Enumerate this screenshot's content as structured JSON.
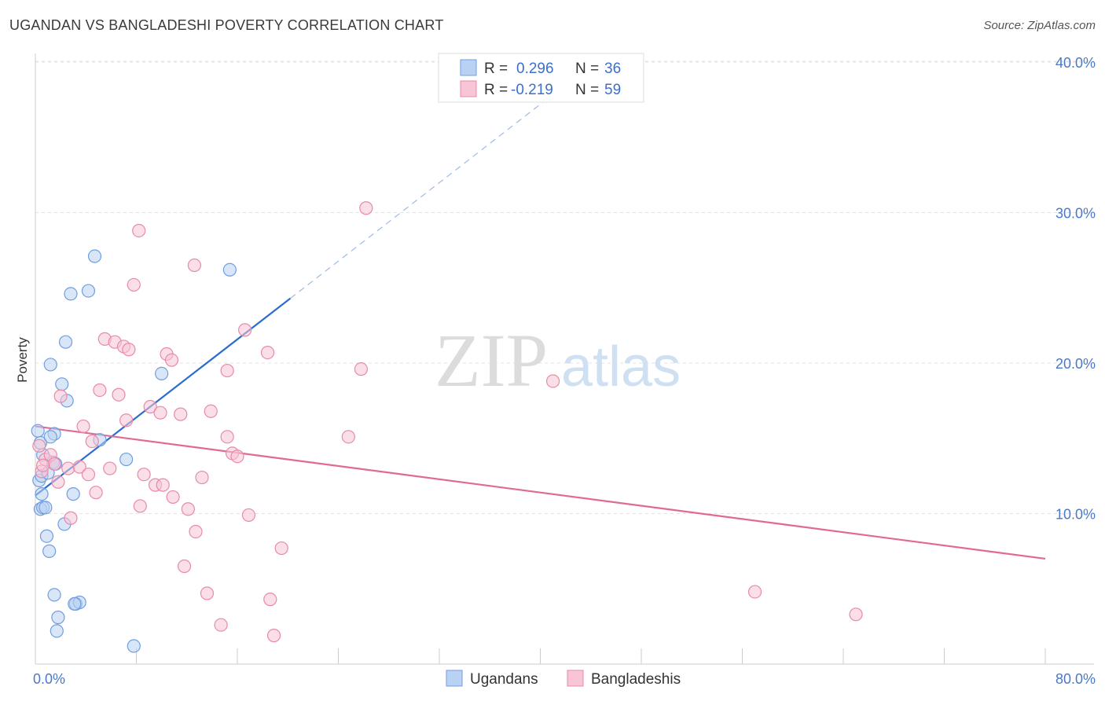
{
  "title": "UGANDAN VS BANGLADESHI POVERTY CORRELATION CHART",
  "source": "Source: ZipAtlas.com",
  "watermark": {
    "zip": "ZIP",
    "atlas": "atlas"
  },
  "colors": {
    "blue": "#6f9ee0",
    "blue_fill": "#b9d1f2",
    "blue_line": "#2a6ccf",
    "pink": "#e88aa8",
    "pink_fill": "#f7c5d6",
    "pink_line": "#e06a93",
    "tick": "#4a78c8",
    "grid": "#e3e3e3"
  },
  "chart_data": {
    "type": "scatter",
    "title": "UGANDAN VS BANGLADESHI POVERTY CORRELATION CHART",
    "xlabel": "",
    "ylabel": "Poverty",
    "xlim": [
      0,
      80
    ],
    "ylim": [
      0,
      41
    ],
    "x_tick_labels": [
      "0.0%",
      "80.0%"
    ],
    "y_ticks": [
      10,
      20,
      30,
      40
    ],
    "y_tick_labels": [
      "10.0%",
      "20.0%",
      "30.0%",
      "40.0%"
    ],
    "legend": {
      "entries": [
        {
          "r_label": "R =",
          "r_value": "0.296",
          "n_label": "N =",
          "n_value": "36"
        },
        {
          "r_label": "R =",
          "r_value": "-0.219",
          "n_label": "N =",
          "n_value": "59"
        }
      ]
    },
    "series": [
      {
        "name": "Ugandans",
        "color": "blue",
        "trend": {
          "x0": 0,
          "y0": 11.2,
          "x1": 20.2,
          "y1": 24.3,
          "dash_x1": 42,
          "dash_y1": 38.5
        },
        "points": [
          [
            0.2,
            15.5
          ],
          [
            0.4,
            14.7
          ],
          [
            0.3,
            12.2
          ],
          [
            0.5,
            11.3
          ],
          [
            0.4,
            10.3
          ],
          [
            0.6,
            10.4
          ],
          [
            0.5,
            12.5
          ],
          [
            1.0,
            12.7
          ],
          [
            1.4,
            13.4
          ],
          [
            1.5,
            15.3
          ],
          [
            1.2,
            15.1
          ],
          [
            1.6,
            13.3
          ],
          [
            0.9,
            8.5
          ],
          [
            1.1,
            7.5
          ],
          [
            1.2,
            19.9
          ],
          [
            2.1,
            18.6
          ],
          [
            2.5,
            17.5
          ],
          [
            2.4,
            21.4
          ],
          [
            2.8,
            24.6
          ],
          [
            4.2,
            24.8
          ],
          [
            4.7,
            27.1
          ],
          [
            2.3,
            9.3
          ],
          [
            3.0,
            11.3
          ],
          [
            1.5,
            4.6
          ],
          [
            1.8,
            3.1
          ],
          [
            3.2,
            4.0
          ],
          [
            3.5,
            4.1
          ],
          [
            1.7,
            2.2
          ],
          [
            5.1,
            14.9
          ],
          [
            7.2,
            13.6
          ],
          [
            10.0,
            19.3
          ],
          [
            15.4,
            26.2
          ],
          [
            7.8,
            1.2
          ],
          [
            3.1,
            4.0
          ],
          [
            0.8,
            10.4
          ],
          [
            0.6,
            13.9
          ]
        ]
      },
      {
        "name": "Bangladeshis",
        "color": "pink",
        "trend": {
          "x0": 0,
          "y0": 15.8,
          "x1": 80,
          "y1": 7.0
        },
        "points": [
          [
            0.3,
            14.5
          ],
          [
            0.5,
            12.8
          ],
          [
            0.8,
            13.6
          ],
          [
            1.2,
            13.9
          ],
          [
            1.5,
            13.3
          ],
          [
            1.8,
            12.1
          ],
          [
            2.0,
            17.8
          ],
          [
            2.6,
            13.0
          ],
          [
            2.8,
            9.7
          ],
          [
            3.5,
            13.1
          ],
          [
            3.8,
            15.8
          ],
          [
            4.2,
            12.6
          ],
          [
            4.5,
            14.8
          ],
          [
            4.8,
            11.4
          ],
          [
            5.1,
            18.2
          ],
          [
            5.5,
            21.6
          ],
          [
            5.9,
            13.0
          ],
          [
            6.3,
            21.4
          ],
          [
            6.6,
            17.9
          ],
          [
            7.0,
            21.1
          ],
          [
            7.2,
            16.2
          ],
          [
            7.4,
            20.9
          ],
          [
            7.8,
            25.2
          ],
          [
            8.3,
            10.5
          ],
          [
            8.2,
            28.8
          ],
          [
            8.6,
            12.6
          ],
          [
            9.1,
            17.1
          ],
          [
            9.5,
            11.9
          ],
          [
            9.9,
            16.7
          ],
          [
            10.1,
            11.9
          ],
          [
            10.4,
            20.6
          ],
          [
            10.8,
            20.2
          ],
          [
            10.9,
            11.1
          ],
          [
            11.5,
            16.6
          ],
          [
            11.8,
            6.5
          ],
          [
            12.1,
            10.3
          ],
          [
            12.6,
            26.5
          ],
          [
            12.7,
            8.8
          ],
          [
            13.2,
            12.4
          ],
          [
            13.6,
            4.7
          ],
          [
            13.9,
            16.8
          ],
          [
            14.7,
            2.6
          ],
          [
            15.2,
            19.5
          ],
          [
            15.2,
            15.1
          ],
          [
            15.6,
            14.0
          ],
          [
            16.0,
            13.8
          ],
          [
            16.6,
            22.2
          ],
          [
            16.9,
            9.9
          ],
          [
            18.4,
            20.7
          ],
          [
            18.6,
            4.3
          ],
          [
            18.9,
            1.9
          ],
          [
            19.5,
            7.7
          ],
          [
            24.8,
            15.1
          ],
          [
            25.8,
            19.6
          ],
          [
            26.2,
            30.3
          ],
          [
            41.0,
            18.8
          ],
          [
            57.0,
            4.8
          ],
          [
            65.0,
            3.3
          ],
          [
            0.6,
            13.2
          ]
        ]
      }
    ]
  }
}
